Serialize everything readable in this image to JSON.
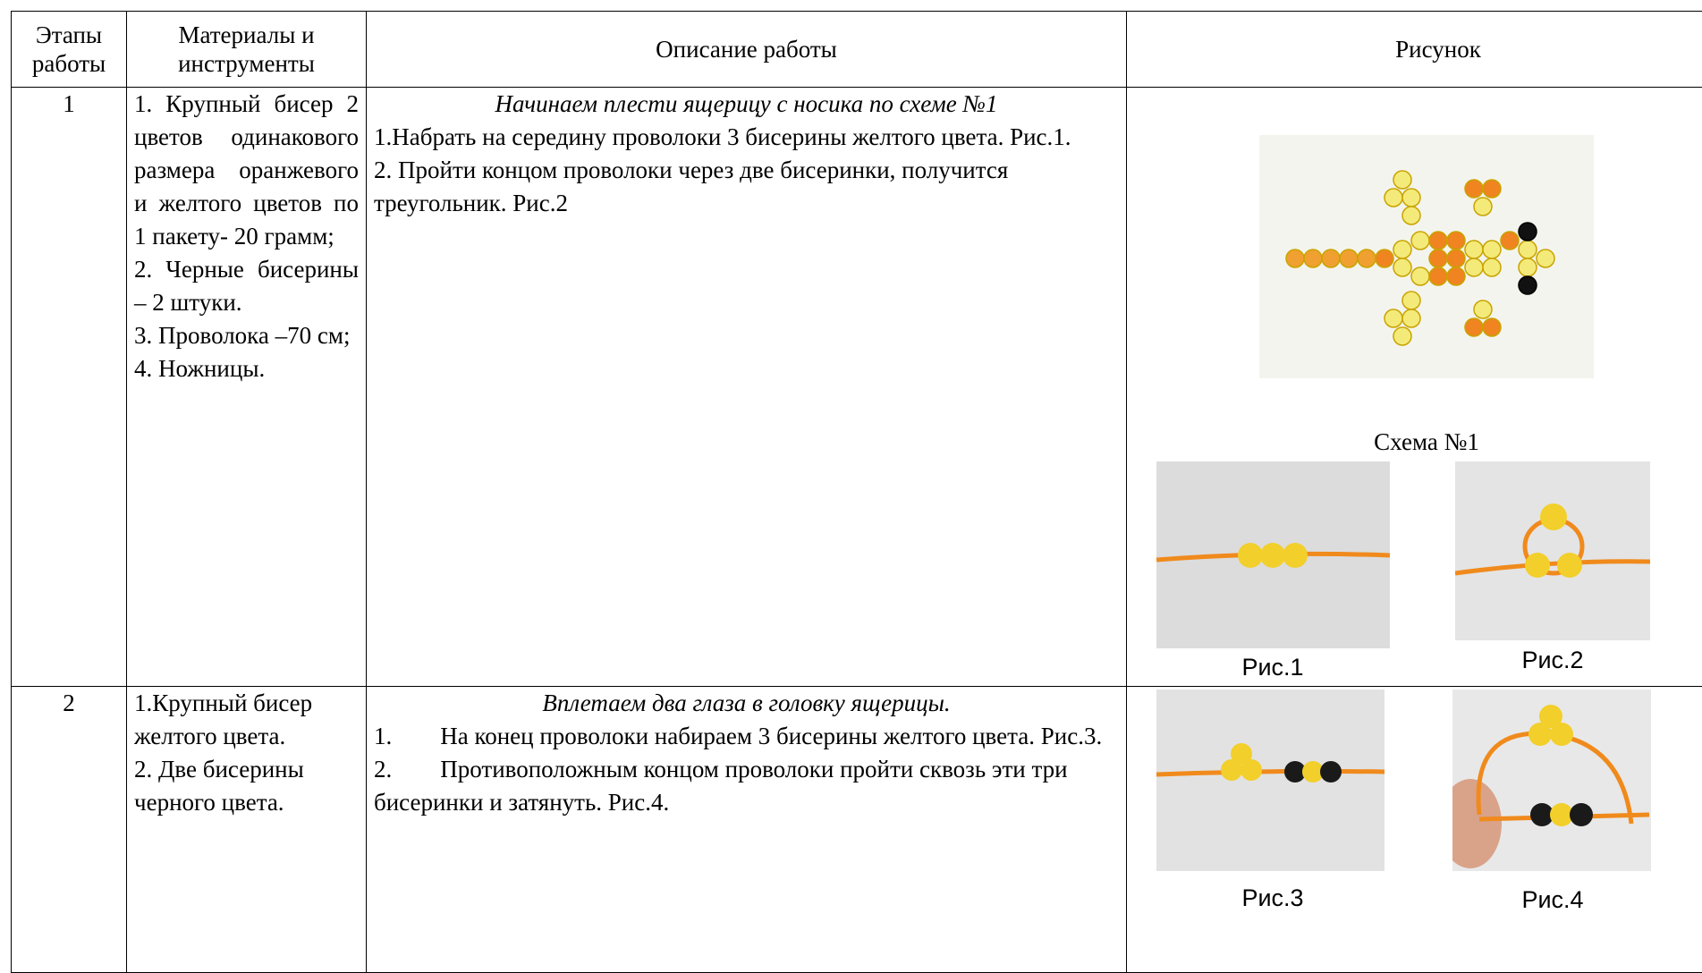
{
  "table": {
    "header": [
      "Этапы работы",
      "Материалы и инструменты",
      "Описание работы",
      "Рисунок"
    ],
    "rows": [
      {
        "stage": "1",
        "materials": [
          "1. Крупный бисер 2 цветов одинакового размера оранжевого и желтого цветов по 1 пакету- 20 грамм;",
          "2. Черные бисерины – 2 штуки.",
          "3. Проволока –70 см;",
          "4. Ножницы."
        ],
        "description": {
          "title": "Начинаем плести ящерицу с носика по схеме №1",
          "steps": [
            "1.Набрать на середину проволоки 3 бисерины желтого цвета. Рис.1.",
            "2. Пройти концом проволоки через две бисеринки, получится треугольник. Рис.2"
          ]
        },
        "figures": [
          "Схема №1",
          "Рис.1",
          "Рис.2"
        ]
      },
      {
        "stage": "2",
        "materials": [
          "1.Крупный бисер желтого цвета.",
          "2. Две бисерины черного цвета."
        ],
        "description": {
          "title": "Вплетаем два глаза в головку ящерицы.",
          "steps": [
            "1.        На конец проволоки набираем 3 бисерины желтого цвета. Рис.3.",
            "2.        Противоположным концом проволоки пройти сквозь эти три бисеринки и затянуть. Рис.4."
          ]
        },
        "figures": [
          "Рис.3",
          "Рис.4"
        ]
      }
    ]
  }
}
